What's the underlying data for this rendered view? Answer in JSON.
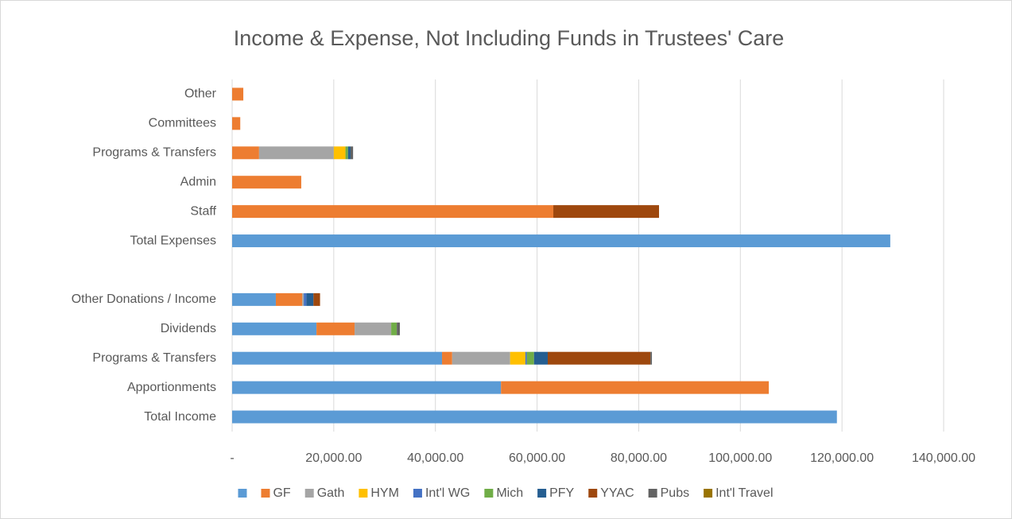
{
  "chart_data": {
    "type": "stacked_barh",
    "title": "Income & Expense, Not Including Funds in Trustees' Care",
    "categories": [
      "Total Income",
      "Apportionments",
      "Programs & Transfers",
      "Dividends",
      "Other Donations / Income",
      null,
      "Total Expenses",
      "Staff",
      "Admin",
      "Programs & Transfers",
      "Committees",
      "Other"
    ],
    "series": [
      {
        "name": null,
        "color": "#5b9bd5",
        "values": [
          119000,
          52900,
          41300,
          16600,
          8600,
          null,
          129500,
          null,
          null,
          null,
          null,
          null
        ]
      },
      {
        "name": "GF",
        "color": "#ed7d31",
        "values": [
          null,
          52700,
          2000,
          7500,
          5200,
          null,
          null,
          63200,
          13600,
          5300,
          1600,
          2200
        ]
      },
      {
        "name": "Gath",
        "color": "#a5a5a5",
        "values": [
          null,
          null,
          11400,
          7200,
          300,
          null,
          null,
          null,
          null,
          14700,
          null,
          null
        ]
      },
      {
        "name": "HYM",
        "color": "#ffc000",
        "values": [
          null,
          null,
          3000,
          null,
          null,
          null,
          null,
          null,
          null,
          2300,
          null,
          null
        ]
      },
      {
        "name": "Int'l WG",
        "color": "#4472c4",
        "values": [
          null,
          null,
          300,
          null,
          500,
          null,
          null,
          null,
          null,
          null,
          null,
          null
        ]
      },
      {
        "name": "Mich",
        "color": "#70ad47",
        "values": [
          null,
          null,
          1400,
          1100,
          null,
          null,
          null,
          null,
          null,
          500,
          null,
          null
        ]
      },
      {
        "name": "PFY",
        "color": "#255e91",
        "values": [
          null,
          null,
          2700,
          null,
          1400,
          null,
          null,
          null,
          null,
          500,
          null,
          null
        ]
      },
      {
        "name": "YYAC",
        "color": "#9e480e",
        "values": [
          null,
          null,
          20200,
          null,
          1300,
          null,
          null,
          20800,
          null,
          null,
          null,
          null
        ]
      },
      {
        "name": "Pubs",
        "color": "#636363",
        "values": [
          null,
          null,
          300,
          600,
          null,
          null,
          null,
          null,
          null,
          500,
          null,
          null
        ]
      },
      {
        "name": "Int'l Travel",
        "color": "#997300",
        "values": [
          null,
          null,
          null,
          null,
          null,
          null,
          null,
          null,
          null,
          null,
          null,
          null
        ]
      }
    ],
    "xlim": [
      0,
      140000
    ],
    "xticks": [
      {
        "value": 0,
        "label": "-"
      },
      {
        "value": 20000,
        "label": "20,000.00"
      },
      {
        "value": 40000,
        "label": "40,000.00"
      },
      {
        "value": 60000,
        "label": "60,000.00"
      },
      {
        "value": 80000,
        "label": "80,000.00"
      },
      {
        "value": 100000,
        "label": "100,000.00"
      },
      {
        "value": 120000,
        "label": "120,000.00"
      },
      {
        "value": 140000,
        "label": "140,000.00"
      }
    ],
    "grid": true,
    "legend": "bottom"
  }
}
